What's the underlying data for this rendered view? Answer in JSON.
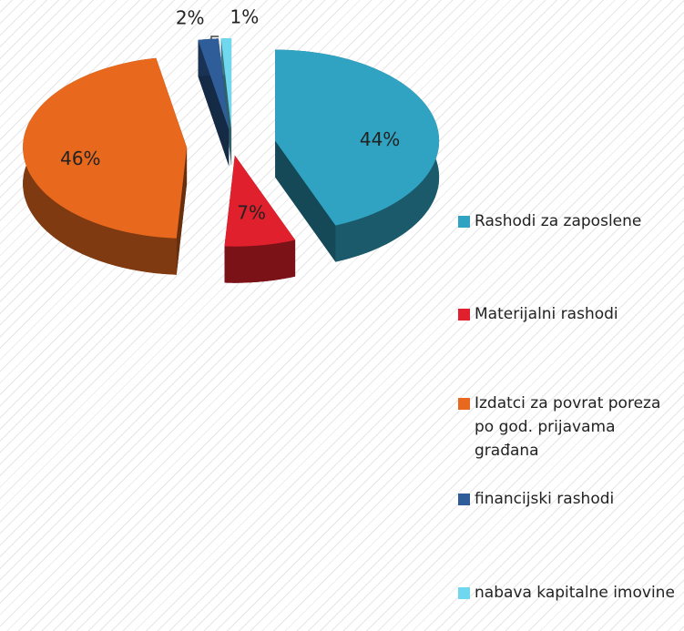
{
  "chart_data": {
    "type": "pie",
    "categories": [
      "Rashodi za zaposlene",
      "Materijalni rashodi",
      "Izdatci za povrat poreza po god. prijavama građana",
      "financijski rashodi",
      "nabava kapitalne imovine"
    ],
    "values": [
      44,
      7,
      46,
      2,
      1
    ],
    "value_labels": [
      "44%",
      "7%",
      "46%",
      "2%",
      "1%"
    ],
    "colors": [
      "#2fa3c1",
      "#e0202c",
      "#e8691e",
      "#2f5d99",
      "#6fd8ef"
    ],
    "legend": "right"
  }
}
